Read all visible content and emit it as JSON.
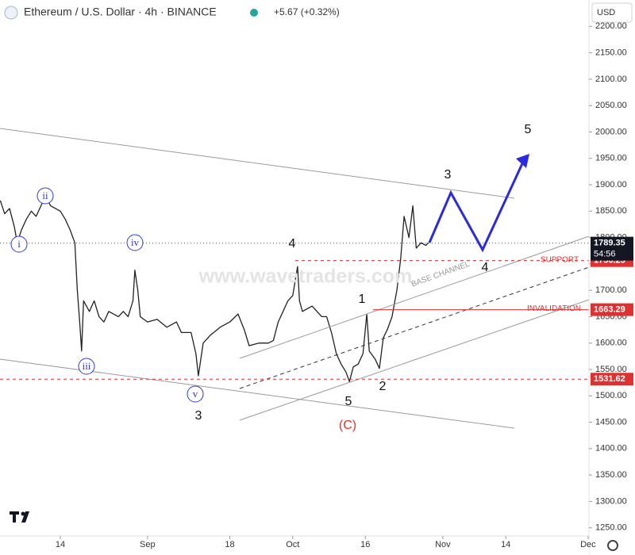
{
  "header": {
    "title": "Ethereum / U.S. Dollar · 4h · BINANCE",
    "change": "+5.67 (+0.32%)",
    "currency": "USD"
  },
  "watermark": "www.wavetraders.com",
  "chart_data": {
    "type": "line",
    "xlim": [
      0.54,
      122.18
    ],
    "xticks": [
      {
        "value": 13,
        "label": "14"
      },
      {
        "value": 31,
        "label": "Sep"
      },
      {
        "value": 48,
        "label": "18"
      },
      {
        "value": 61,
        "label": "Oct"
      },
      {
        "value": 76,
        "label": "16"
      },
      {
        "value": 92,
        "label": "Nov"
      },
      {
        "value": 105,
        "label": "14"
      },
      {
        "value": 122,
        "label": "Dec"
      }
    ],
    "ylim": [
      1227,
      2250
    ],
    "yticks": [
      {
        "value": 1250,
        "label": "1250.00"
      },
      {
        "value": 1300,
        "label": "1300.00"
      },
      {
        "value": 1350,
        "label": "1350.00"
      },
      {
        "value": 1400,
        "label": "1400.00"
      },
      {
        "value": 1450,
        "label": "1450.00"
      },
      {
        "value": 1500,
        "label": "1500.00"
      },
      {
        "value": 1550,
        "label": "1550.00"
      },
      {
        "value": 1600,
        "label": "1600.00"
      },
      {
        "value": 1650,
        "label": "1650.00"
      },
      {
        "value": 1700,
        "label": "1700.00"
      },
      {
        "value": 1750,
        "label": "1750.00"
      },
      {
        "value": 1800,
        "label": "1800.00"
      },
      {
        "value": 1850,
        "label": "1850.00"
      },
      {
        "value": 1900,
        "label": "1900.00"
      },
      {
        "value": 1950,
        "label": "1950.00"
      },
      {
        "value": 2000,
        "label": "2000.00"
      },
      {
        "value": 2050,
        "label": "2050.00"
      },
      {
        "value": 2100,
        "label": "2100.00"
      },
      {
        "value": 2150,
        "label": "2150.00"
      },
      {
        "value": 2200,
        "label": "2200.00"
      }
    ],
    "series": [
      {
        "color": "#222222",
        "x": [
          0.6,
          1.5,
          2.5,
          3.5,
          4.1,
          5,
          6,
          7,
          8,
          9,
          9.9,
          11,
          12,
          13,
          14,
          15,
          16,
          16.5,
          17,
          17.4,
          17.8,
          19,
          20,
          21,
          22,
          23,
          24,
          25,
          26,
          27,
          28,
          28.4,
          29,
          29.5,
          31,
          33,
          35,
          37,
          38,
          40,
          41,
          41.5,
          42.5,
          44,
          46,
          48,
          49.7,
          51,
          52,
          54,
          56,
          57,
          58,
          59,
          60,
          61,
          62,
          62.4,
          63,
          65,
          67,
          68,
          69,
          70,
          71,
          72,
          72.7,
          73.5,
          74.5,
          75.5,
          76.3,
          76.8,
          78,
          78.9,
          79.7,
          80.5,
          81.5,
          82.5,
          83.3,
          84,
          85,
          85.8,
          86.5,
          87.5,
          88.5,
          89
        ],
        "values": [
          1870,
          1845,
          1855,
          1820,
          1790,
          1815,
          1835,
          1850,
          1840,
          1860,
          1878,
          1860,
          1855,
          1850,
          1835,
          1815,
          1790,
          1700,
          1640,
          1585,
          1680,
          1660,
          1680,
          1650,
          1640,
          1660,
          1655,
          1650,
          1660,
          1650,
          1680,
          1738,
          1700,
          1650,
          1640,
          1645,
          1630,
          1640,
          1620,
          1620,
          1580,
          1538,
          1600,
          1615,
          1630,
          1640,
          1655,
          1625,
          1595,
          1600,
          1600,
          1605,
          1640,
          1660,
          1680,
          1690,
          1745,
          1680,
          1660,
          1670,
          1650,
          1650,
          1620,
          1580,
          1560,
          1545,
          1527,
          1555,
          1560,
          1580,
          1655,
          1585,
          1570,
          1552,
          1610,
          1625,
          1650,
          1700,
          1760,
          1840,
          1800,
          1860,
          1780,
          1790,
          1785,
          1790
        ]
      }
    ],
    "last_price": {
      "value": 1789.35,
      "countdown": "54:56"
    },
    "levels": [
      {
        "value": 1756.25,
        "label": "SUPPORT",
        "color": "#e03131"
      },
      {
        "value": 1663.29,
        "label": "INVALIDATION",
        "color": "#e03131"
      },
      {
        "value": 1531.62,
        "color": "#e03131"
      }
    ],
    "wave_labels": [
      "i",
      "ii",
      "iii",
      "iv",
      "v",
      "3",
      "4",
      "5",
      "1",
      "2",
      "(C)",
      "3",
      "4",
      "5"
    ],
    "channel_label": "BASE CHANNEL"
  }
}
